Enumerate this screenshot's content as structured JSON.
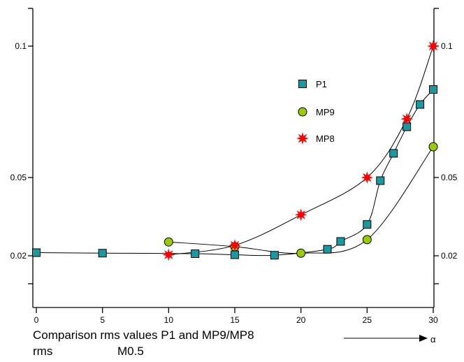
{
  "chart_data": {
    "type": "line",
    "xlabel": "α",
    "xlim": [
      0,
      30
    ],
    "x_ticks": [
      0,
      5,
      10,
      15,
      20,
      25,
      30
    ],
    "y_ticks": [
      {
        "value": 0.02,
        "label": "0.02"
      },
      {
        "value": 0.05,
        "label": "0.05"
      },
      {
        "value": 0.1,
        "label": "0.1"
      }
    ],
    "ylim": [
      0.008,
      0.108
    ],
    "grid": false,
    "legend_position": "upper-middle-right",
    "series": [
      {
        "name": "P1",
        "marker": "square",
        "color": "#1a9aa0",
        "x": [
          0,
          5,
          12,
          15,
          18,
          22,
          23,
          25,
          26,
          27,
          28,
          29,
          30
        ],
        "y": [
          0.0188,
          0.019,
          0.0208,
          0.0204,
          0.0198,
          0.0225,
          0.0255,
          0.032,
          0.0488,
          0.0592,
          0.0693,
          0.0778,
          0.0835
        ]
      },
      {
        "name": "MP9",
        "marker": "circle",
        "color": "#99cc00",
        "x": [
          10,
          15,
          20,
          25,
          30
        ],
        "y": [
          0.0147,
          0.0165,
          0.021,
          0.0262,
          0.0617
        ]
      },
      {
        "name": "MP8",
        "marker": "star",
        "color": "#ff0000",
        "x": [
          10,
          15,
          20,
          25,
          28,
          30
        ],
        "y": [
          0.0196,
          0.024,
          0.0357,
          0.05,
          0.0723,
          0.1
        ]
      }
    ]
  },
  "caption": {
    "line1": "Comparison rms values P1 and MP9/MP8",
    "line2": "rms",
    "line2_sub": "M0.5"
  },
  "colors": {
    "axis": "#000000",
    "curve": "#000000"
  }
}
